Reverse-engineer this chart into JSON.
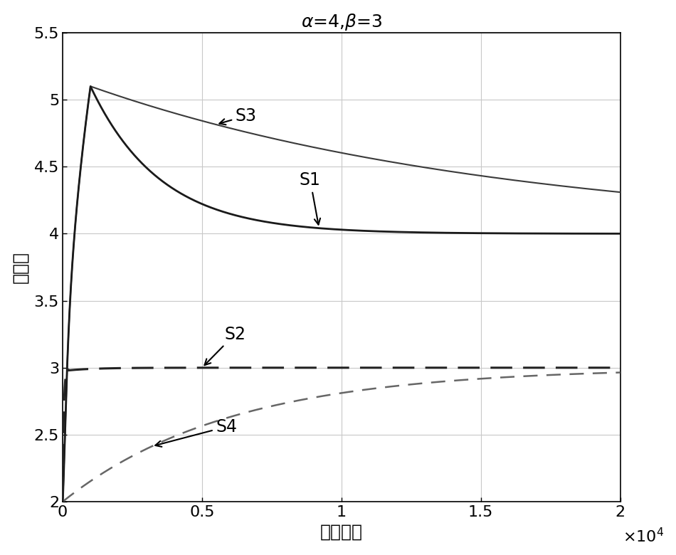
{
  "title": "$\\alpha$=4,$\\beta$=3",
  "xlabel": "迭代次数",
  "ylabel": "参数値",
  "xlim": [
    0,
    20000
  ],
  "ylim": [
    2,
    5.5
  ],
  "alpha_val": 4,
  "beta_val": 3,
  "background_color": "#ffffff",
  "grid_color": "#c8c8c8",
  "title_fontsize": 18,
  "label_fontsize": 18,
  "tick_fontsize": 16,
  "annotation_fontsize": 17
}
